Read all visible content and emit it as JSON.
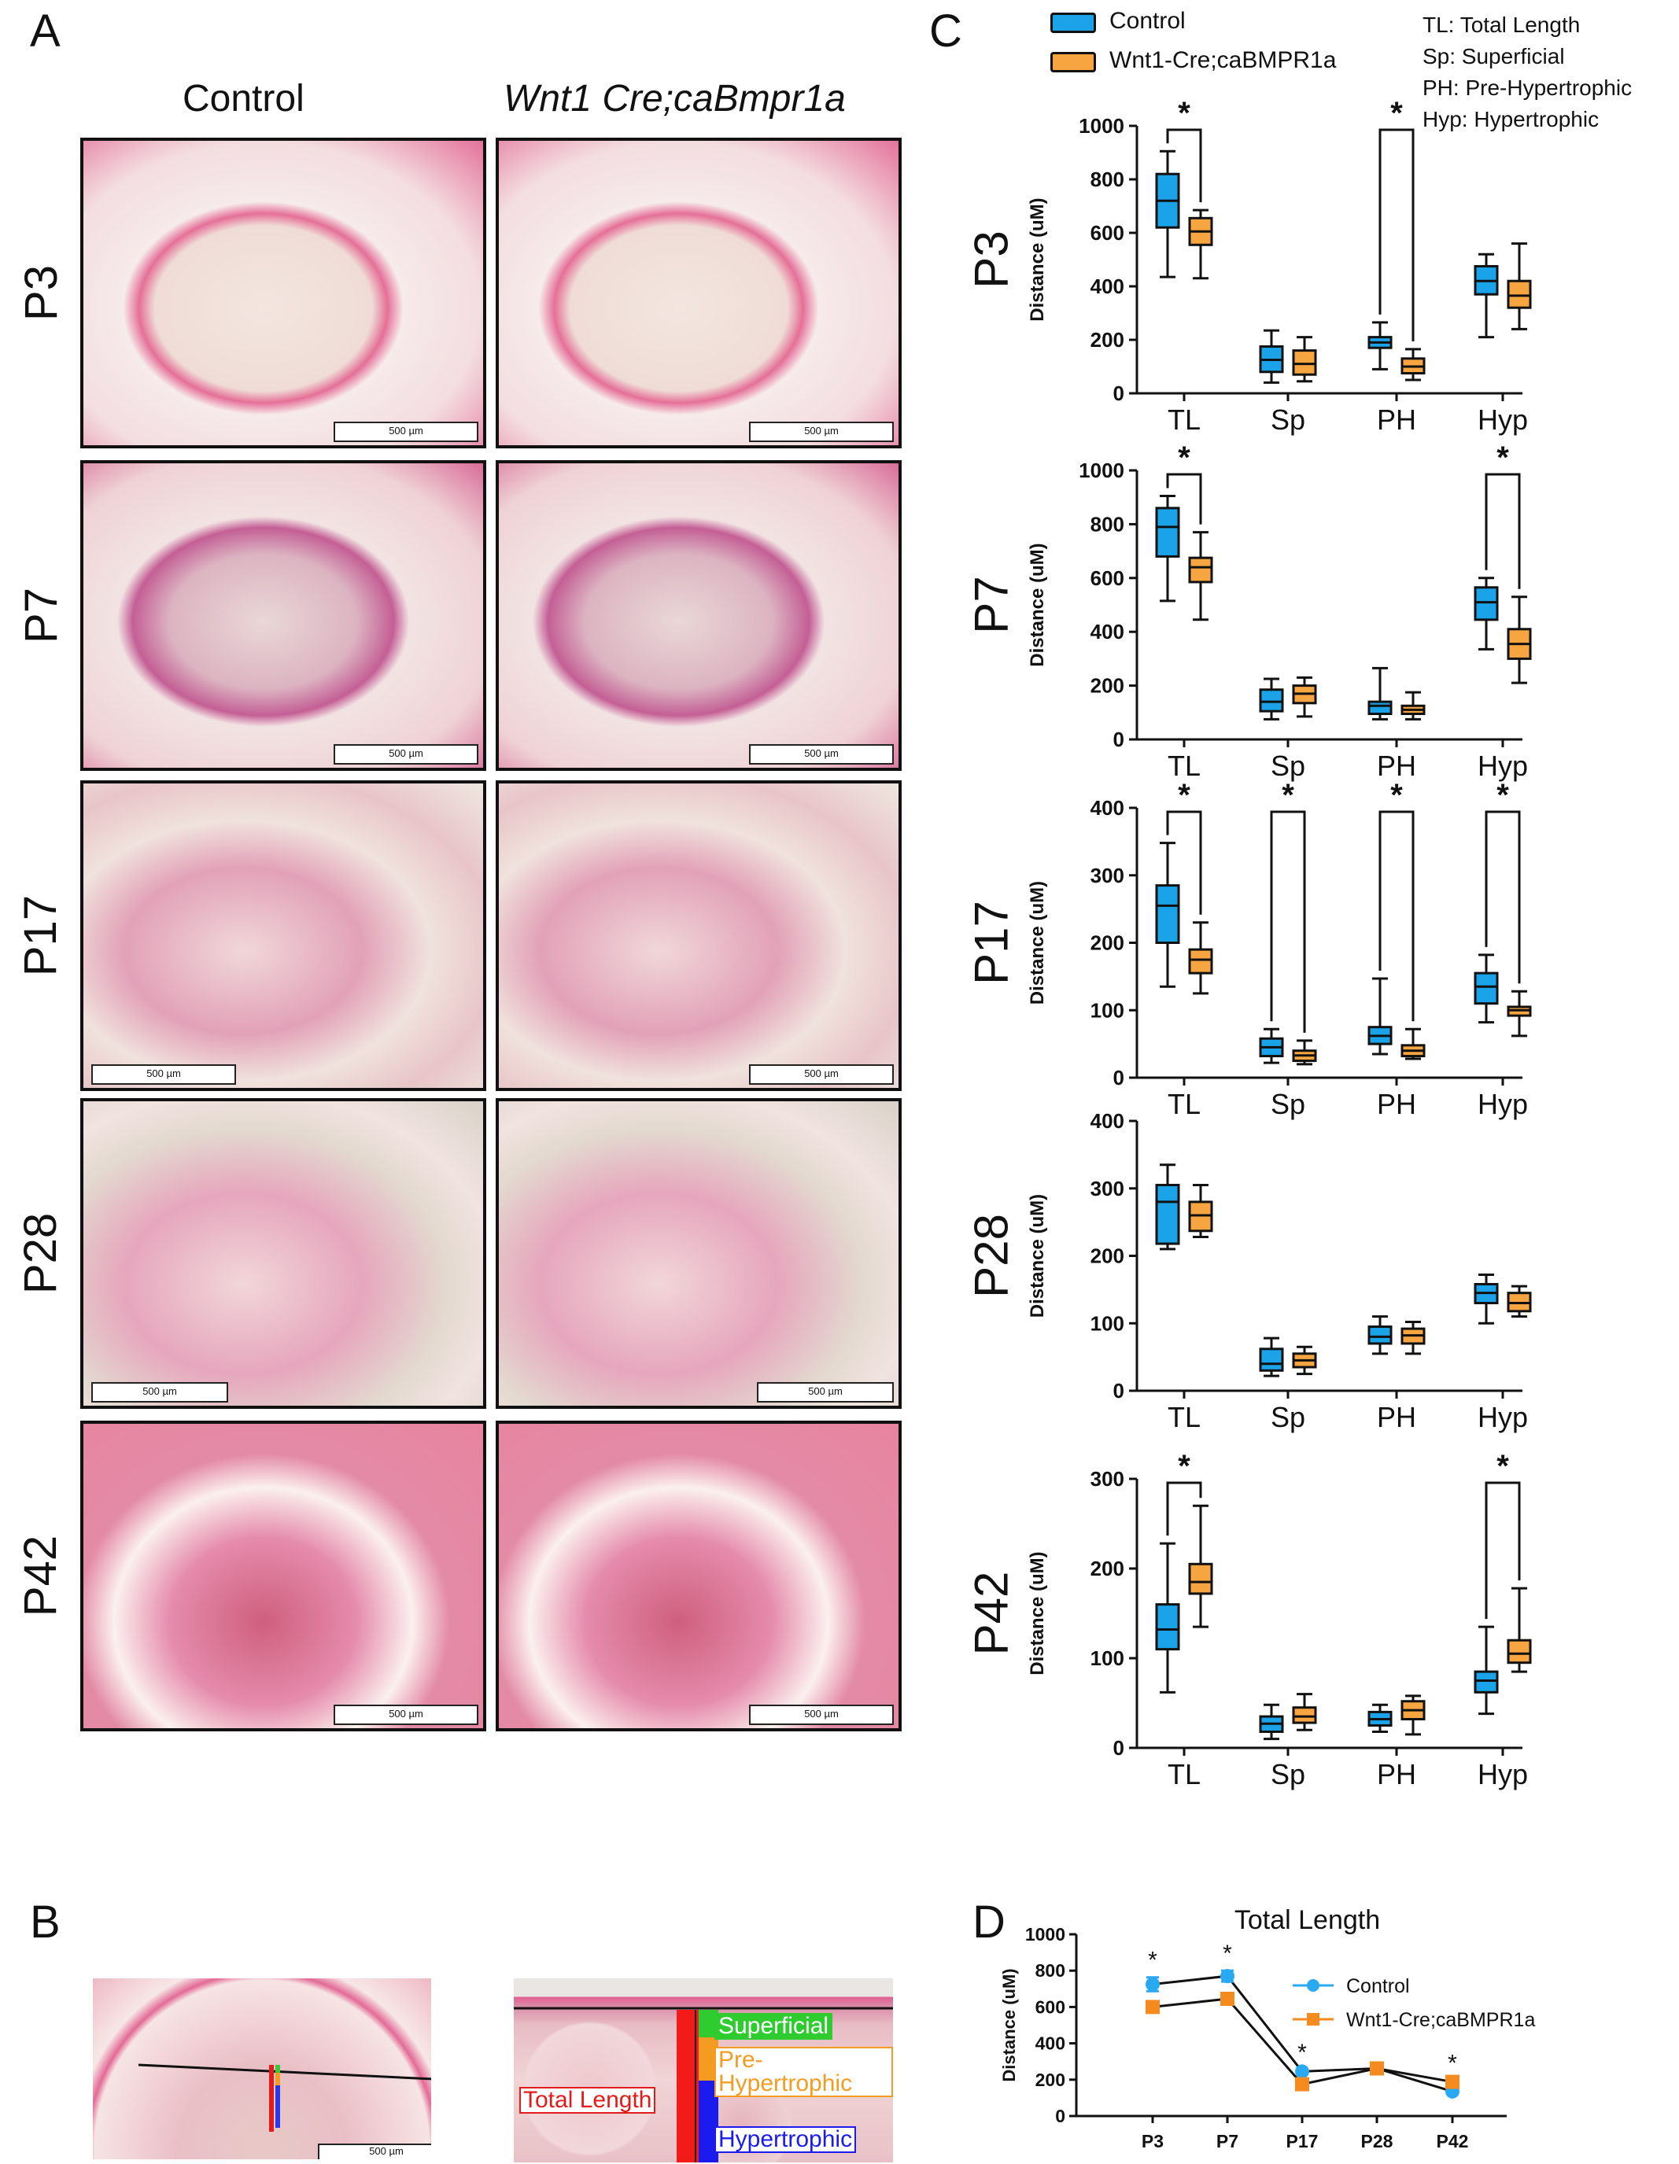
{
  "panel_labels": {
    "a": "A",
    "b": "B",
    "c": "C",
    "d": "D"
  },
  "panelA": {
    "col_control": "Control",
    "col_mutant": "Wnt1 Cre;caBmpr1a",
    "rows": [
      "P3",
      "P7",
      "P17",
      "P28",
      "P42"
    ],
    "scalebar": "500 µm"
  },
  "panelB": {
    "scalebar": "500 µm",
    "zones": {
      "superficial": "Superficial",
      "prehyp": "Pre-Hypertrophic",
      "total": "Total Length",
      "hyp": "Hypertrophic"
    }
  },
  "legend": {
    "control": "Control",
    "mutant": "Wnt1-Cre;caBMPR1a",
    "abbr": [
      "TL: Total Length",
      "Sp: Superficial",
      "PH: Pre-Hypertrophic",
      "Hyp: Hypertrophic"
    ]
  },
  "colors": {
    "control": "#1aa3e8",
    "mutant": "#f7a541",
    "d_control": "#29a9f2",
    "d_mutant": "#f58a1e"
  },
  "chart_data": [
    {
      "type": "box",
      "stage": "P3",
      "ylabel": "Distance (uM)",
      "ylim": [
        0,
        1000
      ],
      "yticks": [
        0,
        200,
        400,
        600,
        800,
        1000
      ],
      "categories": [
        "TL",
        "Sp",
        "PH",
        "Hyp"
      ],
      "series": [
        {
          "name": "Control",
          "boxes": [
            [
              435,
              620,
              720,
              820,
              905
            ],
            [
              40,
              80,
              125,
              175,
              235
            ],
            [
              90,
              170,
              190,
              210,
              265
            ],
            [
              210,
              370,
              420,
              475,
              520
            ]
          ]
        },
        {
          "name": "Wnt1-Cre;caBMPR1a",
          "boxes": [
            [
              430,
              555,
              605,
              655,
              685
            ],
            [
              45,
              70,
              110,
              160,
              210
            ],
            [
              50,
              75,
              100,
              130,
              165
            ],
            [
              240,
              320,
              365,
              420,
              560
            ]
          ]
        }
      ],
      "significance": [
        {
          "label": "*",
          "category": "TL"
        },
        {
          "label": "*",
          "category": "PH"
        }
      ]
    },
    {
      "type": "box",
      "stage": "P7",
      "ylabel": "Distance (uM)",
      "ylim": [
        0,
        1000
      ],
      "yticks": [
        0,
        200,
        400,
        600,
        800,
        1000
      ],
      "categories": [
        "TL",
        "Sp",
        "PH",
        "Hyp"
      ],
      "series": [
        {
          "name": "Control",
          "boxes": [
            [
              515,
              680,
              790,
              860,
              905
            ],
            [
              75,
              105,
              140,
              185,
              225
            ],
            [
              75,
              95,
              125,
              140,
              265
            ],
            [
              335,
              445,
              510,
              565,
              600
            ]
          ]
        },
        {
          "name": "Wnt1-Cre;caBMPR1a",
          "boxes": [
            [
              445,
              585,
              640,
              675,
              770
            ],
            [
              85,
              135,
              170,
              200,
              230
            ],
            [
              75,
              95,
              110,
              125,
              175
            ],
            [
              210,
              300,
              355,
              410,
              530
            ]
          ]
        }
      ],
      "significance": [
        {
          "label": "*",
          "category": "TL"
        },
        {
          "label": "*",
          "category": "Hyp"
        }
      ]
    },
    {
      "type": "box",
      "stage": "P17",
      "ylabel": "Distance (uM)",
      "ylim": [
        0,
        400
      ],
      "yticks": [
        0,
        100,
        200,
        300,
        400
      ],
      "categories": [
        "TL",
        "Sp",
        "PH",
        "Hyp"
      ],
      "series": [
        {
          "name": "Control",
          "boxes": [
            [
              135,
              200,
              255,
              285,
              348
            ],
            [
              22,
              32,
              45,
              58,
              72
            ],
            [
              35,
              50,
              62,
              75,
              147
            ],
            [
              82,
              110,
              135,
              155,
              182
            ]
          ]
        },
        {
          "name": "Wnt1-Cre;caBMPR1a",
          "boxes": [
            [
              125,
              155,
              175,
              190,
              230
            ],
            [
              20,
              25,
              33,
              40,
              55
            ],
            [
              28,
              32,
              40,
              48,
              72
            ],
            [
              62,
              92,
              100,
              105,
              128
            ]
          ]
        }
      ],
      "significance": [
        {
          "label": "*",
          "category": "TL"
        },
        {
          "label": "*",
          "category": "Sp"
        },
        {
          "label": "*",
          "category": "PH"
        },
        {
          "label": "*",
          "category": "Hyp"
        }
      ]
    },
    {
      "type": "box",
      "stage": "P28",
      "ylabel": "Distance (uM)",
      "ylim": [
        0,
        400
      ],
      "yticks": [
        0,
        100,
        200,
        300,
        400
      ],
      "categories": [
        "TL",
        "Sp",
        "PH",
        "Hyp"
      ],
      "series": [
        {
          "name": "Control",
          "boxes": [
            [
              210,
              218,
              280,
              305,
              335
            ],
            [
              22,
              30,
              40,
              62,
              78
            ],
            [
              55,
              70,
              80,
              95,
              110
            ],
            [
              100,
              130,
              145,
              158,
              172
            ]
          ]
        },
        {
          "name": "Wnt1-Cre;caBMPR1a",
          "boxes": [
            [
              228,
              237,
              260,
              280,
              305
            ],
            [
              25,
              35,
              45,
              55,
              65
            ],
            [
              55,
              70,
              82,
              92,
              102
            ],
            [
              110,
              118,
              130,
              145,
              155
            ]
          ]
        }
      ],
      "significance": []
    },
    {
      "type": "box",
      "stage": "P42",
      "ylabel": "Distance (uM)",
      "ylim": [
        0,
        300
      ],
      "yticks": [
        0,
        100,
        200,
        300
      ],
      "categories": [
        "TL",
        "Sp",
        "PH",
        "Hyp"
      ],
      "series": [
        {
          "name": "Control",
          "boxes": [
            [
              62,
              110,
              132,
              160,
              228
            ],
            [
              10,
              18,
              27,
              35,
              48
            ],
            [
              18,
              25,
              32,
              40,
              48
            ],
            [
              38,
              62,
              75,
              85,
              135
            ]
          ]
        },
        {
          "name": "Wnt1-Cre;caBMPR1a",
          "boxes": [
            [
              135,
              172,
              185,
              205,
              270
            ],
            [
              20,
              28,
              35,
              45,
              60
            ],
            [
              15,
              32,
              42,
              52,
              58
            ],
            [
              85,
              95,
              105,
              120,
              178
            ]
          ]
        }
      ],
      "significance": [
        {
          "label": "*",
          "category": "TL"
        },
        {
          "label": "*",
          "category": "Hyp"
        }
      ]
    },
    {
      "type": "line",
      "title": "Total Length",
      "ylabel": "Distance (uM)",
      "ylim": [
        0,
        1000
      ],
      "yticks": [
        0,
        200,
        400,
        600,
        800,
        1000
      ],
      "categories": [
        "P3",
        "P7",
        "P17",
        "P28",
        "P42"
      ],
      "series": [
        {
          "name": "Control",
          "values": [
            725,
            770,
            245,
            262,
            135
          ],
          "errors": [
            38,
            30,
            10,
            8,
            10
          ]
        },
        {
          "name": "Wnt1-Cre;caBMPR1a",
          "values": [
            600,
            645,
            175,
            262,
            188
          ],
          "errors": [
            8,
            15,
            8,
            8,
            10
          ]
        }
      ],
      "significance": [
        "*",
        "*",
        "*",
        "",
        "*"
      ]
    }
  ]
}
